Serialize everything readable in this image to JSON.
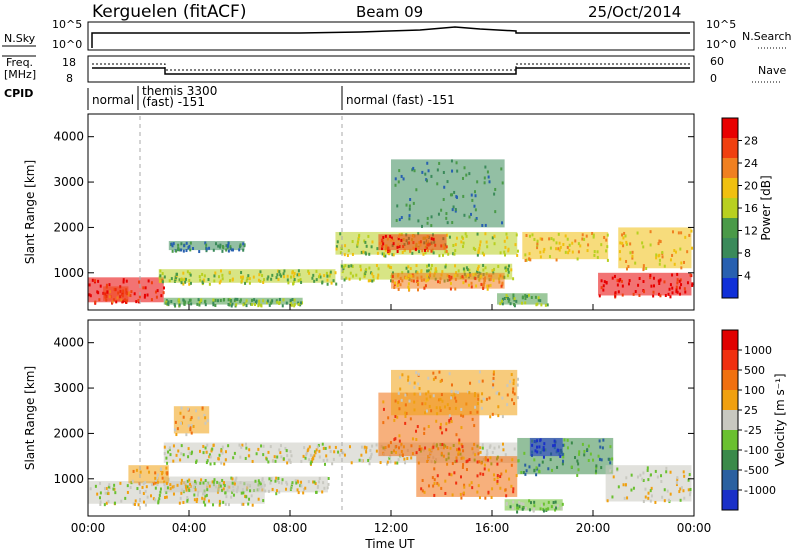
{
  "header": {
    "station": "Kerguelen (fitACF)",
    "beam": "Beam 09",
    "date": "25/Oct/2014"
  },
  "top_panels": {
    "nsky_label": "N.Sky",
    "nsky_ticks": [
      "10^5",
      "10^0"
    ],
    "nsearch_label": "N.Search",
    "nsearch_ticks": [
      "10^5",
      "10^0"
    ],
    "freq_label_1": "Freq.",
    "freq_label_2": "[MHz]",
    "freq_ticks": [
      "18",
      "8"
    ],
    "nave_label": "Nave",
    "nave_ticks": [
      "60",
      "0"
    ],
    "cpid_label": "CPID",
    "cpid_segments": [
      {
        "text": "normal",
        "start_hour": 0
      },
      {
        "text": "themis 3300",
        "start_hour": 1.9
      },
      {
        "text": "(fast) -151",
        "start_hour": 1.9
      },
      {
        "text": "normal (fast) -151",
        "start_hour": 10
      }
    ]
  },
  "colors": {
    "power": [
      "#1030d8",
      "#2860b0",
      "#3a8a5a",
      "#4a9a48",
      "#b8d020",
      "#f0c010",
      "#f08020",
      "#f04010",
      "#e80000"
    ],
    "velocity": [
      "#1a30c8",
      "#2a60a0",
      "#3a8a4a",
      "#6ac030",
      "#c8c8c0",
      "#f0a010",
      "#f07010",
      "#f03010",
      "#e00000"
    ]
  },
  "chart_data": [
    {
      "type": "heatmap",
      "title": "Power",
      "xlabel": "",
      "ylabel": "Slant Range [km]",
      "x_ticks": [
        "00:00",
        "04:00",
        "08:00",
        "12:00",
        "16:00",
        "20:00",
        "00:00"
      ],
      "x_range_hours": [
        0,
        24
      ],
      "y_ticks": [
        1000,
        2000,
        3000,
        4000
      ],
      "ylim": [
        180,
        4500
      ],
      "colorbar_label": "Power [dB]",
      "colorbar_ticks": [
        4,
        8,
        12,
        16,
        20,
        24,
        28
      ],
      "bands": [
        {
          "start": 0,
          "end": 3.0,
          "r0": 350,
          "r1": 900,
          "level": 8
        },
        {
          "start": 0.6,
          "end": 1.6,
          "r0": 380,
          "r1": 700,
          "level": 7
        },
        {
          "start": 2.8,
          "end": 9.8,
          "r0": 780,
          "r1": 1080,
          "level": 4
        },
        {
          "start": 3.0,
          "end": 8.5,
          "r0": 300,
          "r1": 450,
          "level": 3
        },
        {
          "start": 3.2,
          "end": 6.2,
          "r0": 1500,
          "r1": 1700,
          "level": 2
        },
        {
          "start": 9.8,
          "end": 17.0,
          "r0": 1400,
          "r1": 1900,
          "level": 4
        },
        {
          "start": 11.5,
          "end": 14.2,
          "r0": 1500,
          "r1": 1850,
          "level": 7
        },
        {
          "start": 10.0,
          "end": 16.8,
          "r0": 850,
          "r1": 1200,
          "level": 4
        },
        {
          "start": 12.0,
          "end": 16.5,
          "r0": 650,
          "r1": 1000,
          "level": 6
        },
        {
          "start": 12.0,
          "end": 16.5,
          "r0": 2000,
          "r1": 3500,
          "level": 2
        },
        {
          "start": 17.2,
          "end": 20.6,
          "r0": 1300,
          "r1": 1900,
          "level": 5
        },
        {
          "start": 16.2,
          "end": 18.2,
          "r0": 300,
          "r1": 550,
          "level": 3
        },
        {
          "start": 20.2,
          "end": 23.9,
          "r0": 500,
          "r1": 1000,
          "level": 8
        },
        {
          "start": 21.0,
          "end": 23.9,
          "r0": 1100,
          "r1": 2000,
          "level": 5
        }
      ]
    },
    {
      "type": "heatmap",
      "title": "Velocity",
      "xlabel": "Time UT",
      "ylabel": "Slant Range [km]",
      "x_ticks": [
        "00:00",
        "04:00",
        "08:00",
        "12:00",
        "16:00",
        "20:00",
        "00:00"
      ],
      "x_range_hours": [
        0,
        24
      ],
      "y_ticks": [
        1000,
        2000,
        3000,
        4000
      ],
      "ylim": [
        180,
        4500
      ],
      "colorbar_label": "Velocity [m s⁻¹]",
      "colorbar_ticks": [
        "1000",
        "500",
        "100",
        "25",
        "-25",
        "-100",
        "-500",
        "-1000"
      ],
      "bands": [
        {
          "start": 0,
          "end": 7.0,
          "r0": 450,
          "r1": 950,
          "level": 4
        },
        {
          "start": 3.0,
          "end": 17.0,
          "r0": 1350,
          "r1": 1800,
          "level": 4
        },
        {
          "start": 3.0,
          "end": 9.5,
          "r0": 700,
          "r1": 1050,
          "level": 4
        },
        {
          "start": 1.6,
          "end": 3.2,
          "r0": 900,
          "r1": 1300,
          "level": 5
        },
        {
          "start": 3.4,
          "end": 4.8,
          "r0": 2000,
          "r1": 2600,
          "level": 5
        },
        {
          "start": 11.5,
          "end": 15.5,
          "r0": 1500,
          "r1": 2900,
          "level": 6
        },
        {
          "start": 13.0,
          "end": 17.0,
          "r0": 600,
          "r1": 1500,
          "level": 6
        },
        {
          "start": 12.0,
          "end": 17.0,
          "r0": 2400,
          "r1": 3400,
          "level": 5
        },
        {
          "start": 17.0,
          "end": 20.8,
          "r0": 1100,
          "r1": 1900,
          "level": 2
        },
        {
          "start": 17.5,
          "end": 18.8,
          "r0": 1500,
          "r1": 1900,
          "level": 0
        },
        {
          "start": 20.5,
          "end": 23.9,
          "r0": 500,
          "r1": 1300,
          "level": 4
        },
        {
          "start": 16.5,
          "end": 18.8,
          "r0": 300,
          "r1": 550,
          "level": 3
        }
      ]
    }
  ]
}
